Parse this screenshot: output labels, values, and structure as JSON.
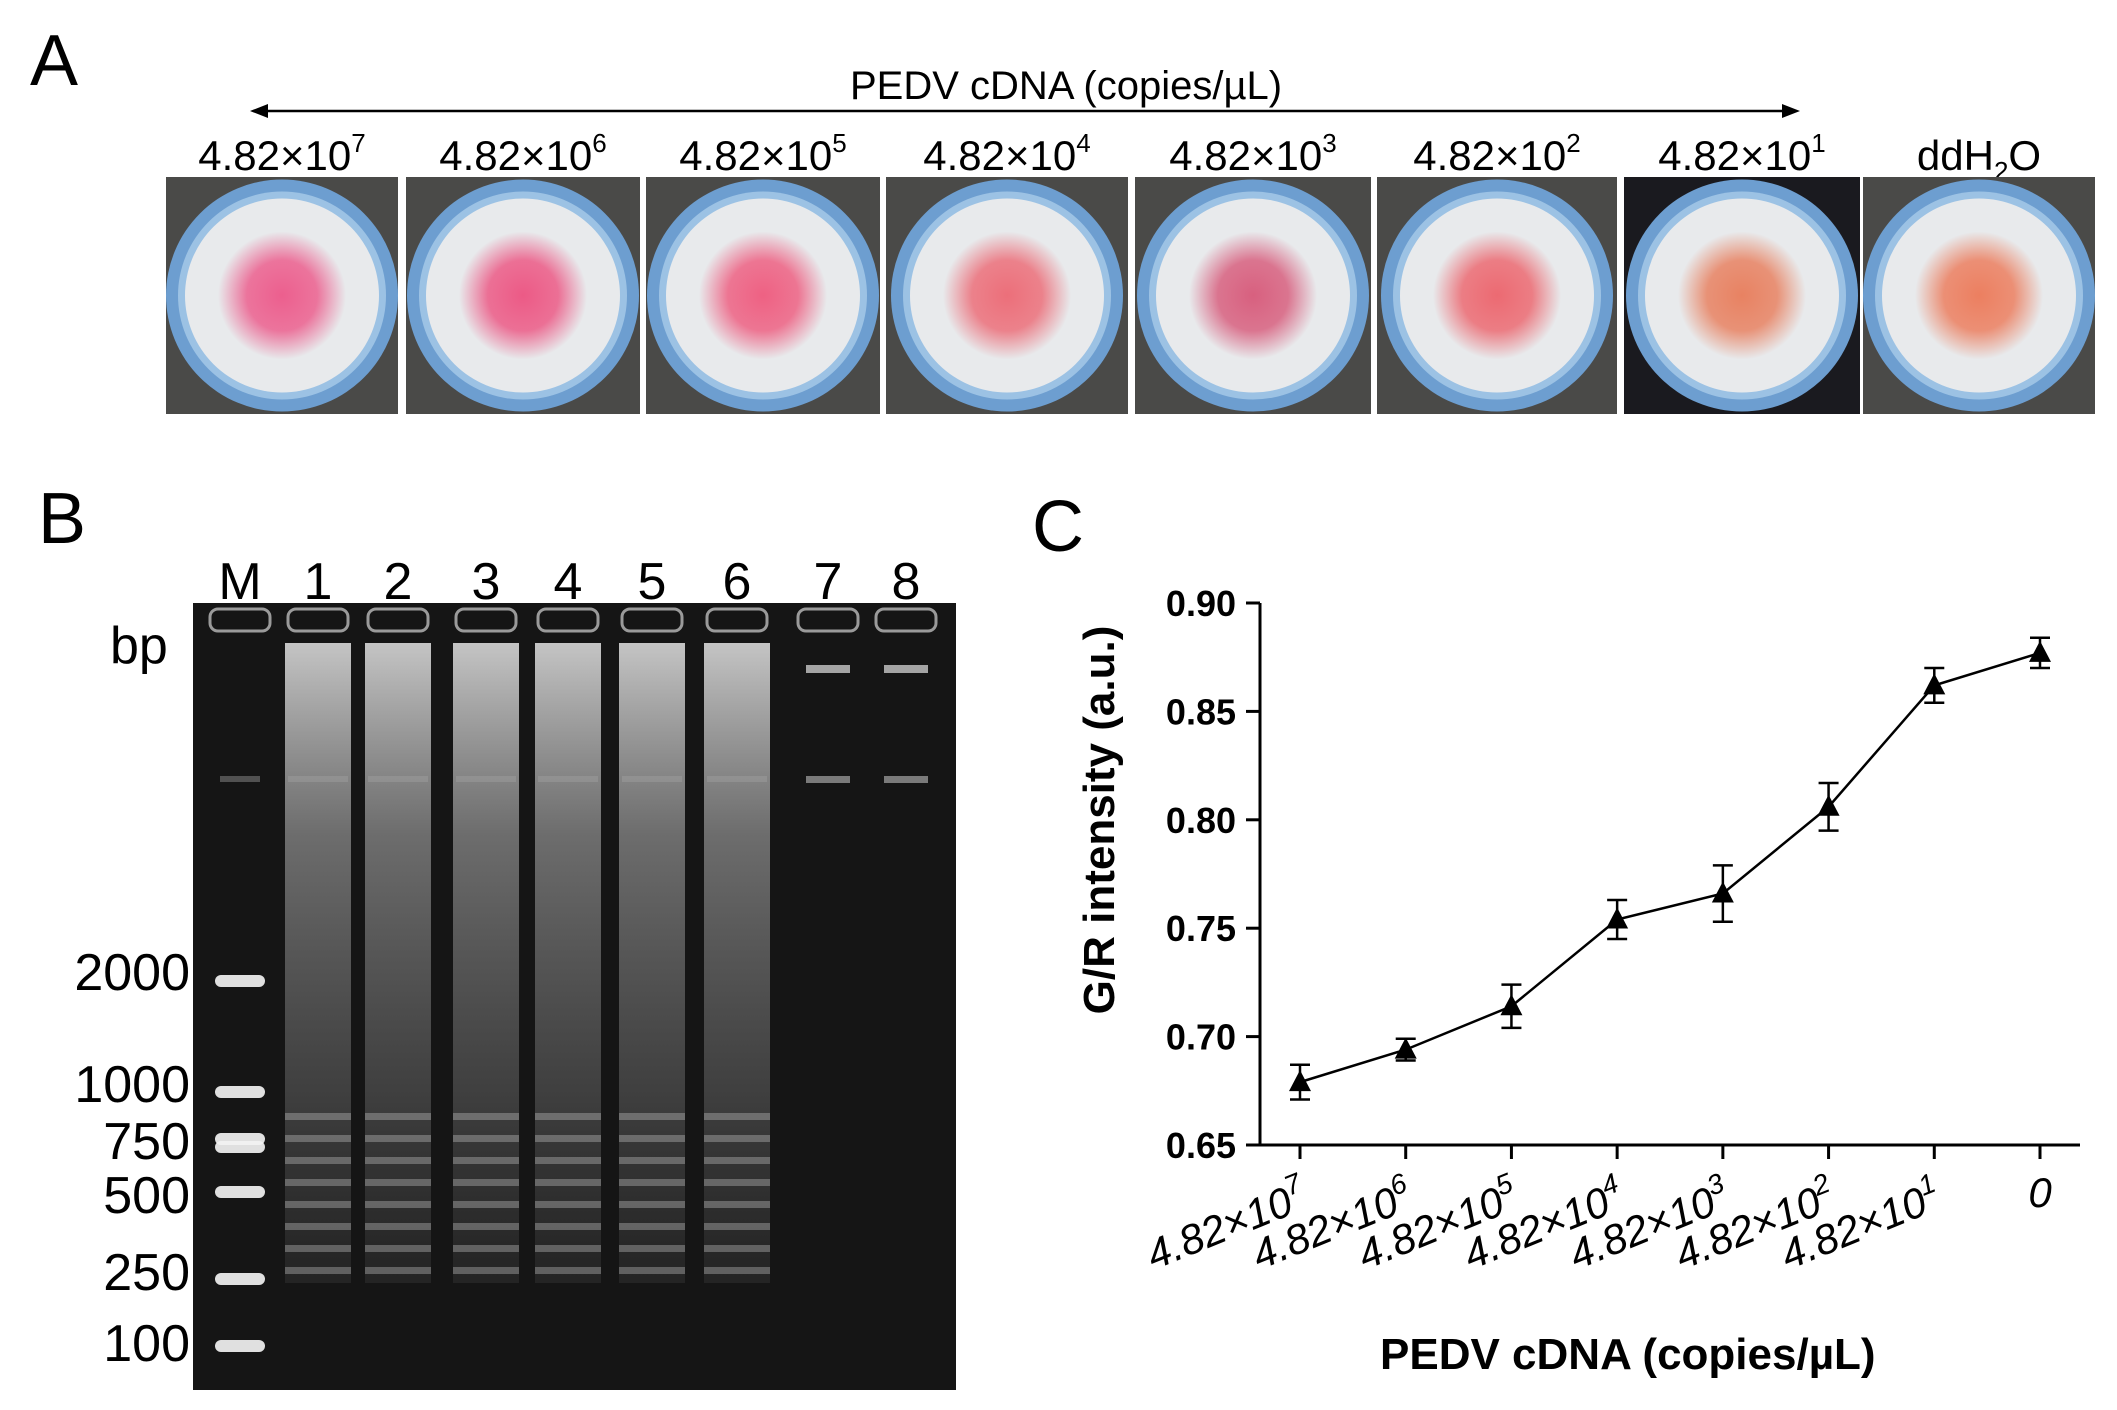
{
  "panel_labels": {
    "a": "A",
    "b": "B",
    "c": "C"
  },
  "panel_a": {
    "title": "PEDV cDNA (copies/µL)",
    "samples": [
      {
        "mantissa": "4.82×10",
        "exp": "7",
        "center_color": "#ec5f8e"
      },
      {
        "mantissa": "4.82×10",
        "exp": "6",
        "center_color": "#ec5a86"
      },
      {
        "mantissa": "4.82×10",
        "exp": "5",
        "center_color": "#ee6183"
      },
      {
        "mantissa": "4.82×10",
        "exp": "4",
        "center_color": "#ec6f7a"
      },
      {
        "mantissa": "4.82×10",
        "exp": "3",
        "center_color": "#d8607f"
      },
      {
        "mantissa": "4.82×10",
        "exp": "2",
        "center_color": "#ec6a72"
      },
      {
        "mantissa": "4.82×10",
        "exp": "1",
        "center_color": "#e88262"
      },
      {
        "mantissa": "ddH",
        "sub": "2",
        "suffix": "O",
        "center_color": "#ec7f60"
      }
    ]
  },
  "panel_b": {
    "lane_labels": [
      "M",
      "1",
      "2",
      "3",
      "4",
      "5",
      "6",
      "7",
      "8"
    ],
    "unit": "bp",
    "ladder_labels": [
      "2000",
      "1000",
      "750",
      "500",
      "250",
      "100"
    ]
  },
  "chart_data": {
    "type": "line",
    "xlabel": "PEDV cDNA (copies/µL)",
    "ylabel": "G/R intensity (a.u.)",
    "categories": [
      {
        "mantissa": "4.82×10",
        "exp": "7"
      },
      {
        "mantissa": "4.82×10",
        "exp": "6"
      },
      {
        "mantissa": "4.82×10",
        "exp": "5"
      },
      {
        "mantissa": "4.82×10",
        "exp": "4"
      },
      {
        "mantissa": "4.82×10",
        "exp": "3"
      },
      {
        "mantissa": "4.82×10",
        "exp": "2"
      },
      {
        "mantissa": "4.82×10",
        "exp": "1"
      },
      {
        "mantissa": "0",
        "exp": ""
      }
    ],
    "values": [
      0.679,
      0.694,
      0.714,
      0.754,
      0.766,
      0.806,
      0.862,
      0.877
    ],
    "errors": [
      0.008,
      0.005,
      0.01,
      0.009,
      0.013,
      0.011,
      0.008,
      0.007
    ],
    "ylim": [
      0.65,
      0.9
    ],
    "yticks": [
      "0.65",
      "0.70",
      "0.75",
      "0.80",
      "0.85",
      "0.90"
    ],
    "marker": "triangle",
    "grid": false
  }
}
